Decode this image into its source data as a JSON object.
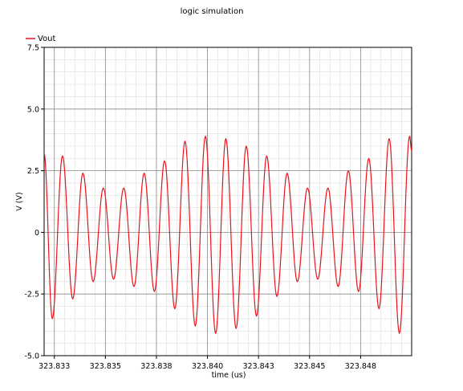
{
  "chart_data": {
    "type": "line",
    "title": "logic simulation",
    "xlabel": "time (us)",
    "ylabel": "V (V)",
    "xlim": [
      323.8325,
      323.8505
    ],
    "ylim": [
      -5.0,
      7.5
    ],
    "x_ticks": [
      323.833,
      323.8355,
      323.838,
      323.8405,
      323.843,
      323.8455,
      323.848
    ],
    "x_tick_labels": [
      "323.833",
      "323.835",
      "323.838",
      "323.840",
      "323.843",
      "323.845",
      "323.848"
    ],
    "y_ticks": [
      7.5,
      5.0,
      2.5,
      0,
      -2.5,
      -5.0
    ],
    "y_tick_labels": [
      "7.5",
      "5.0",
      "2.5",
      "0",
      "-2.5",
      "-5.0"
    ],
    "grid": true,
    "legend": "top-left",
    "series": [
      {
        "name": "Vout",
        "color": "#e8141b",
        "x": [
          323.8325,
          323.8329,
          323.8334,
          323.8339,
          323.8344,
          323.8349,
          323.8354,
          323.8359,
          323.8364,
          323.8369,
          323.8374,
          323.8379,
          323.8384,
          323.8389,
          323.8394,
          323.8399,
          323.8404,
          323.8409,
          323.8414,
          323.8419,
          323.8424,
          323.8429,
          323.8434,
          323.8439,
          323.8444,
          323.8449,
          323.8454,
          323.8459,
          323.8464,
          323.8469,
          323.8474,
          323.8479,
          323.8484,
          323.8489,
          323.8494,
          323.8499,
          323.8504,
          323.8505
        ],
        "y": [
          3.2,
          -3.5,
          3.1,
          -2.7,
          2.4,
          -2.0,
          1.8,
          -1.9,
          1.8,
          -2.2,
          2.4,
          -2.4,
          2.9,
          -3.1,
          3.7,
          -3.8,
          3.9,
          -4.1,
          3.8,
          -3.9,
          3.5,
          -3.4,
          3.1,
          -2.6,
          2.4,
          -2.0,
          1.8,
          -1.9,
          1.8,
          -2.2,
          2.5,
          -2.4,
          3.0,
          -3.1,
          3.8,
          -4.1,
          3.9,
          3.3
        ]
      }
    ]
  }
}
